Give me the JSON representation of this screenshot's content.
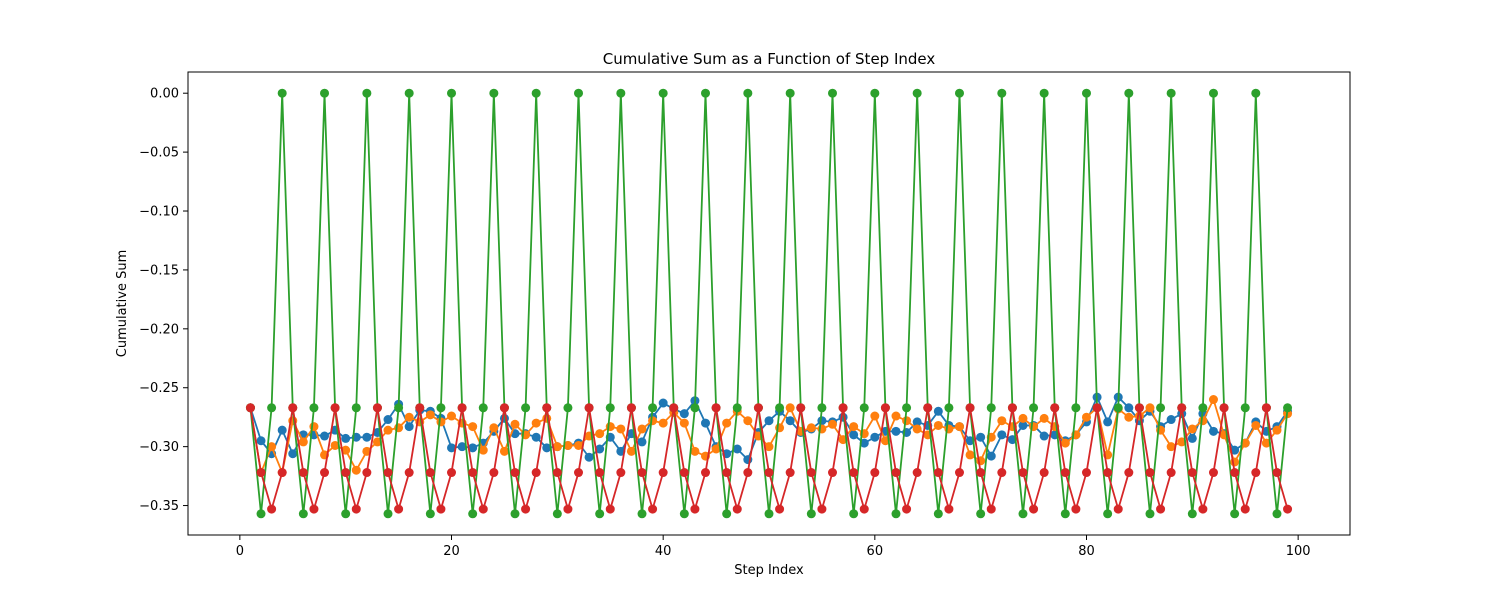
{
  "chart_data": {
    "type": "line",
    "title": "Cumulative Sum as a Function of Step Index",
    "xlabel": "Step Index",
    "ylabel": "Cumulative Sum",
    "xlim": [
      -4.9,
      104.9
    ],
    "ylim": [
      -0.375,
      0.018
    ],
    "xticks": [
      0,
      20,
      40,
      60,
      80,
      100
    ],
    "yticks": [
      0.0,
      -0.05,
      -0.1,
      -0.15,
      -0.2,
      -0.25,
      -0.3,
      -0.35
    ],
    "ytick_labels": [
      "0.00",
      "−0.05",
      "−0.10",
      "−0.15",
      "−0.20",
      "−0.25",
      "−0.30",
      "−0.35"
    ],
    "grid": false,
    "legend": "none",
    "x": [
      1,
      2,
      3,
      4,
      5,
      6,
      7,
      8,
      9,
      10,
      11,
      12,
      13,
      14,
      15,
      16,
      17,
      18,
      19,
      20,
      21,
      22,
      23,
      24,
      25,
      26,
      27,
      28,
      29,
      30,
      31,
      32,
      33,
      34,
      35,
      36,
      37,
      38,
      39,
      40,
      41,
      42,
      43,
      44,
      45,
      46,
      47,
      48,
      49,
      50,
      51,
      52,
      53,
      54,
      55,
      56,
      57,
      58,
      59,
      60,
      61,
      62,
      63,
      64,
      65,
      66,
      67,
      68,
      69,
      70,
      71,
      72,
      73,
      74,
      75,
      76,
      77,
      78,
      79,
      80,
      81,
      82,
      83,
      84,
      85,
      86,
      87,
      88,
      89,
      90,
      91,
      92,
      93,
      94,
      95,
      96,
      97,
      98,
      99
    ],
    "series": [
      {
        "color": "#1f77b4",
        "values": [
          -0.267,
          -0.295,
          -0.306,
          -0.286,
          -0.306,
          -0.29,
          -0.29,
          -0.291,
          -0.286,
          -0.293,
          -0.292,
          -0.292,
          -0.288,
          -0.277,
          -0.264,
          -0.283,
          -0.269,
          -0.27,
          -0.276,
          -0.301,
          -0.3,
          -0.301,
          -0.297,
          -0.287,
          -0.276,
          -0.289,
          -0.289,
          -0.292,
          -0.301,
          -0.3,
          -0.299,
          -0.297,
          -0.309,
          -0.302,
          -0.292,
          -0.304,
          -0.289,
          -0.296,
          -0.275,
          -0.263,
          -0.268,
          -0.272,
          -0.261,
          -0.28,
          -0.3,
          -0.306,
          -0.302,
          -0.311,
          -0.288,
          -0.278,
          -0.27,
          -0.278,
          -0.288,
          -0.285,
          -0.278,
          -0.279,
          -0.275,
          -0.29,
          -0.297,
          -0.292,
          -0.287,
          -0.287,
          -0.288,
          -0.279,
          -0.282,
          -0.27,
          -0.282,
          -0.283,
          -0.295,
          -0.292,
          -0.308,
          -0.29,
          -0.294,
          -0.282,
          -0.282,
          -0.291,
          -0.29,
          -0.295,
          -0.29,
          -0.279,
          -0.258,
          -0.279,
          -0.258,
          -0.267,
          -0.278,
          -0.27,
          -0.283,
          -0.277,
          -0.272,
          -0.293,
          -0.272,
          -0.287,
          -0.289,
          -0.303,
          -0.297,
          -0.279,
          -0.287,
          -0.283,
          -0.27
        ]
      },
      {
        "color": "#ff7f0e",
        "values": [
          -0.267,
          -0.322,
          -0.3,
          -0.322,
          -0.278,
          -0.296,
          -0.283,
          -0.307,
          -0.299,
          -0.303,
          -0.32,
          -0.304,
          -0.296,
          -0.286,
          -0.284,
          -0.275,
          -0.279,
          -0.273,
          -0.279,
          -0.274,
          -0.28,
          -0.283,
          -0.303,
          -0.284,
          -0.304,
          -0.281,
          -0.29,
          -0.28,
          -0.276,
          -0.3,
          -0.299,
          -0.299,
          -0.291,
          -0.289,
          -0.283,
          -0.285,
          -0.304,
          -0.285,
          -0.278,
          -0.28,
          -0.271,
          -0.28,
          -0.304,
          -0.308,
          -0.302,
          -0.28,
          -0.27,
          -0.278,
          -0.291,
          -0.3,
          -0.284,
          -0.267,
          -0.287,
          -0.284,
          -0.285,
          -0.281,
          -0.294,
          -0.283,
          -0.289,
          -0.274,
          -0.295,
          -0.274,
          -0.278,
          -0.285,
          -0.29,
          -0.282,
          -0.285,
          -0.283,
          -0.307,
          -0.312,
          -0.292,
          -0.278,
          -0.283,
          -0.276,
          -0.283,
          -0.276,
          -0.283,
          -0.297,
          -0.29,
          -0.275,
          -0.267,
          -0.307,
          -0.268,
          -0.275,
          -0.274,
          -0.267,
          -0.286,
          -0.3,
          -0.296,
          -0.285,
          -0.278,
          -0.26,
          -0.29,
          -0.313,
          -0.297,
          -0.282,
          -0.297,
          -0.286,
          -0.272
        ]
      },
      {
        "color": "#2ca02c",
        "values": [
          -0.267,
          -0.357,
          -0.267,
          0.0,
          -0.267,
          -0.357,
          -0.267,
          0.0,
          -0.267,
          -0.357,
          -0.267,
          0.0,
          -0.267,
          -0.357,
          -0.267,
          0.0,
          -0.267,
          -0.357,
          -0.267,
          0.0,
          -0.267,
          -0.357,
          -0.267,
          0.0,
          -0.267,
          -0.357,
          -0.267,
          0.0,
          -0.267,
          -0.357,
          -0.267,
          0.0,
          -0.267,
          -0.357,
          -0.267,
          0.0,
          -0.267,
          -0.357,
          -0.267,
          0.0,
          -0.267,
          -0.357,
          -0.267,
          0.0,
          -0.267,
          -0.357,
          -0.267,
          0.0,
          -0.267,
          -0.357,
          -0.267,
          0.0,
          -0.267,
          -0.357,
          -0.267,
          0.0,
          -0.267,
          -0.357,
          -0.267,
          0.0,
          -0.267,
          -0.357,
          -0.267,
          0.0,
          -0.267,
          -0.357,
          -0.267,
          0.0,
          -0.267,
          -0.357,
          -0.267,
          0.0,
          -0.267,
          -0.357,
          -0.267,
          0.0,
          -0.267,
          -0.357,
          -0.267,
          0.0,
          -0.267,
          -0.357,
          -0.267,
          0.0,
          -0.267,
          -0.357,
          -0.267,
          0.0,
          -0.267,
          -0.357,
          -0.267,
          0.0,
          -0.267,
          -0.357,
          -0.267,
          0.0,
          -0.267,
          -0.357,
          -0.267
        ]
      },
      {
        "color": "#d62728",
        "values": [
          -0.267,
          -0.322,
          -0.353,
          -0.322,
          -0.267,
          -0.322,
          -0.353,
          -0.322,
          -0.267,
          -0.322,
          -0.353,
          -0.322,
          -0.267,
          -0.322,
          -0.353,
          -0.322,
          -0.267,
          -0.322,
          -0.353,
          -0.322,
          -0.267,
          -0.322,
          -0.353,
          -0.322,
          -0.267,
          -0.322,
          -0.353,
          -0.322,
          -0.267,
          -0.322,
          -0.353,
          -0.322,
          -0.267,
          -0.322,
          -0.353,
          -0.322,
          -0.267,
          -0.322,
          -0.353,
          -0.322,
          -0.267,
          -0.322,
          -0.353,
          -0.322,
          -0.267,
          -0.322,
          -0.353,
          -0.322,
          -0.267,
          -0.322,
          -0.353,
          -0.322,
          -0.267,
          -0.322,
          -0.353,
          -0.322,
          -0.267,
          -0.322,
          -0.353,
          -0.322,
          -0.267,
          -0.322,
          -0.353,
          -0.322,
          -0.267,
          -0.322,
          -0.353,
          -0.322,
          -0.267,
          -0.322,
          -0.353,
          -0.322,
          -0.267,
          -0.322,
          -0.353,
          -0.322,
          -0.267,
          -0.322,
          -0.353,
          -0.322,
          -0.267,
          -0.322,
          -0.353,
          -0.322,
          -0.267,
          -0.322,
          -0.353,
          -0.322,
          -0.267,
          -0.322,
          -0.353,
          -0.322,
          -0.267,
          -0.322,
          -0.353,
          -0.322,
          -0.267,
          -0.322,
          -0.353
        ]
      }
    ]
  }
}
